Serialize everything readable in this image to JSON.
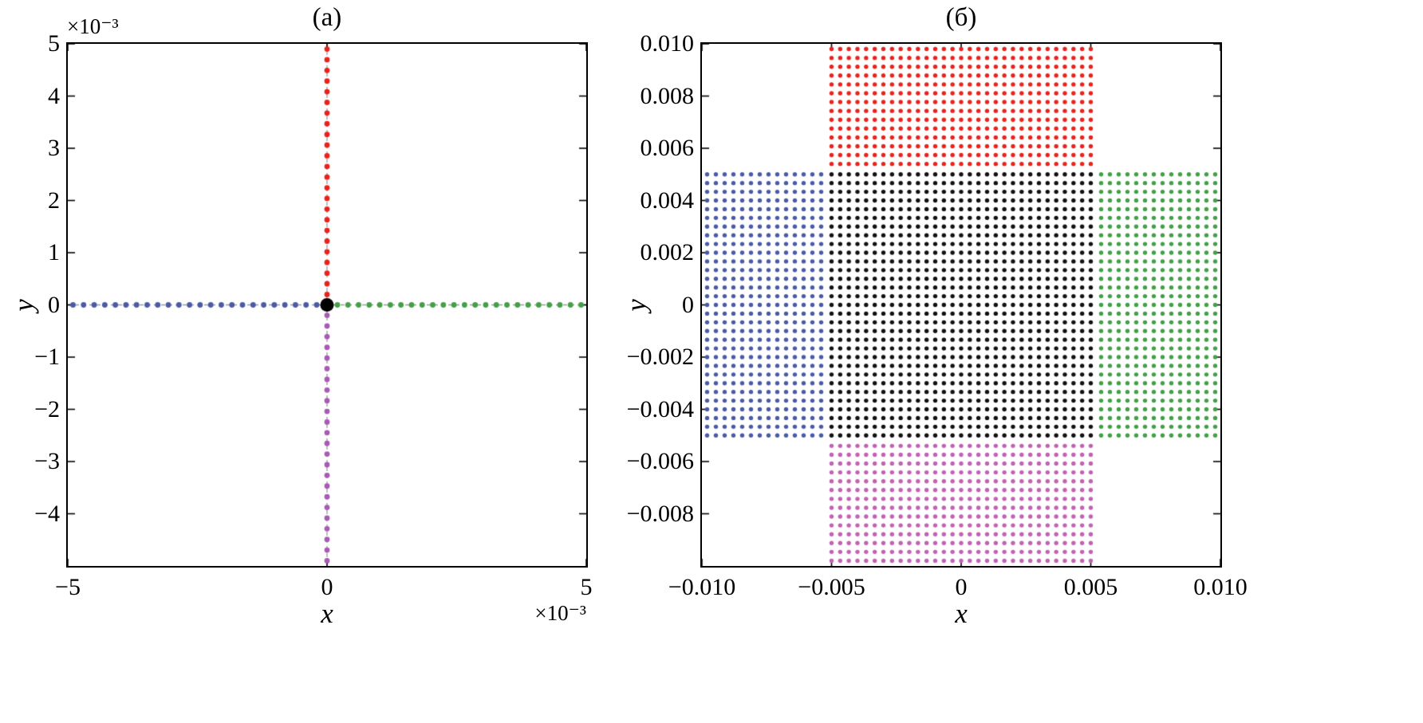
{
  "chart_data": [
    {
      "type": "scatter",
      "title": "(a)",
      "xlabel": "x",
      "ylabel": "y",
      "x_scale_label": "×10⁻³",
      "y_scale_label": "×10⁻³",
      "xlim": [
        -0.005,
        0.005
      ],
      "ylim": [
        -0.005,
        0.005
      ],
      "grid": "off",
      "x_ticks": [
        {
          "v": -0.005,
          "label": "−5"
        },
        {
          "v": 0,
          "label": "0"
        },
        {
          "v": 0.005,
          "label": "5"
        }
      ],
      "y_ticks": [
        {
          "v": 0.005,
          "label": "5"
        },
        {
          "v": 0.004,
          "label": "4"
        },
        {
          "v": 0.003,
          "label": "3"
        },
        {
          "v": 0.002,
          "label": "2"
        },
        {
          "v": 0.001,
          "label": "1"
        },
        {
          "v": 0,
          "label": "0"
        },
        {
          "v": -0.001,
          "label": "−1"
        },
        {
          "v": -0.002,
          "label": "−2"
        },
        {
          "v": -0.003,
          "label": "−3"
        },
        {
          "v": -0.004,
          "label": "−4"
        }
      ],
      "guide_lines": [
        {
          "orientation": "v",
          "at": 0,
          "color": "#9b9b9b"
        },
        {
          "orientation": "h",
          "at": 0,
          "color": "#9b9b9b"
        }
      ],
      "series": [
        {
          "name": "beam-up-red",
          "color": "#e8231d",
          "marker_radius": 3.4,
          "line": {
            "from": [
              0,
              0.0002
            ],
            "to": [
              0,
              0.0049
            ],
            "count": 24
          }
        },
        {
          "name": "beam-down-violet",
          "color": "#a75bb5",
          "marker_radius": 3.4,
          "line": {
            "from": [
              0,
              -0.0002
            ],
            "to": [
              0,
              -0.0049
            ],
            "count": 24
          }
        },
        {
          "name": "beam-left-blue",
          "color": "#4a5ba6",
          "marker_radius": 3.4,
          "line": {
            "from": [
              -0.0002,
              0
            ],
            "to": [
              -0.0049,
              0
            ],
            "count": 24
          }
        },
        {
          "name": "beam-right-green",
          "color": "#43a047",
          "marker_radius": 3.4,
          "line": {
            "from": [
              0.0002,
              0
            ],
            "to": [
              0.0049,
              0
            ],
            "count": 24
          }
        },
        {
          "name": "origin-point-black",
          "color": "#000000",
          "marker_radius": 8.5,
          "points": [
            [
              0,
              0
            ]
          ]
        }
      ]
    },
    {
      "type": "scatter",
      "title": "(б)",
      "xlabel": "x",
      "ylabel": "y",
      "xlim": [
        -0.01,
        0.01
      ],
      "ylim": [
        -0.01,
        0.01
      ],
      "grid": "off",
      "x_ticks": [
        {
          "v": -0.01,
          "label": "−0.010"
        },
        {
          "v": -0.005,
          "label": "−0.005"
        },
        {
          "v": 0,
          "label": "0"
        },
        {
          "v": 0.005,
          "label": "0.005"
        },
        {
          "v": 0.01,
          "label": "0.010"
        }
      ],
      "y_ticks": [
        {
          "v": 0.01,
          "label": "0.010"
        },
        {
          "v": 0.008,
          "label": "0.008"
        },
        {
          "v": 0.006,
          "label": "0.006"
        },
        {
          "v": 0.004,
          "label": "0.004"
        },
        {
          "v": 0.002,
          "label": "0.002"
        },
        {
          "v": 0,
          "label": "0"
        },
        {
          "v": -0.002,
          "label": "−0.002"
        },
        {
          "v": -0.004,
          "label": "−0.004"
        },
        {
          "v": -0.006,
          "label": "−0.006"
        },
        {
          "v": -0.008,
          "label": "−0.008"
        }
      ],
      "guide_lines": [],
      "series": [
        {
          "name": "center-cell-black",
          "color": "#111111",
          "marker_radius": 2.7,
          "grid": {
            "x0": -0.005,
            "x1": 0.005,
            "nx": 31,
            "y0": -0.005,
            "y1": 0.005,
            "ny": 31
          }
        },
        {
          "name": "top-cell-red",
          "color": "#e8231d",
          "marker_radius": 2.7,
          "grid": {
            "x0": -0.005,
            "x1": 0.005,
            "nx": 31,
            "y0": 0.0054,
            "y1": 0.0098,
            "ny": 14
          }
        },
        {
          "name": "bottom-cell-violet",
          "color": "#c262b4",
          "marker_radius": 2.7,
          "grid": {
            "x0": -0.005,
            "x1": 0.005,
            "nx": 31,
            "y0": -0.0098,
            "y1": -0.0054,
            "ny": 14
          }
        },
        {
          "name": "left-cell-blue",
          "color": "#4a5ba6",
          "marker_radius": 2.7,
          "grid": {
            "x0": -0.0098,
            "x1": -0.0054,
            "nx": 14,
            "y0": -0.005,
            "y1": 0.005,
            "ny": 31
          }
        },
        {
          "name": "right-cell-green",
          "color": "#43a047",
          "marker_radius": 2.7,
          "grid": {
            "x0": 0.0054,
            "x1": 0.0098,
            "nx": 14,
            "y0": -0.005,
            "y1": 0.005,
            "ny": 31
          }
        }
      ]
    }
  ]
}
